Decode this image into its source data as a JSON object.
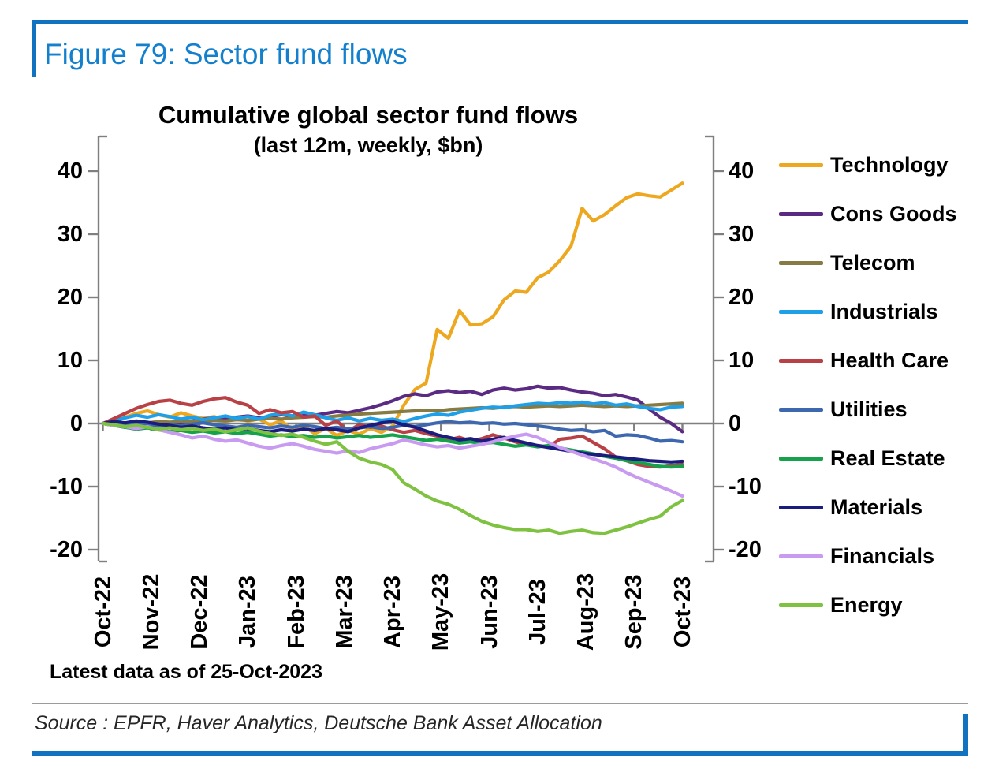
{
  "figure": {
    "title": "Figure 79: Sector fund flows",
    "note": "Latest data as of 25-Oct-2023",
    "source": "Source : EPFR, Haver Analytics, Deutsche Bank Asset Allocation",
    "accent_color": "#1173BF",
    "title_color": "#1380CE"
  },
  "chart_data": {
    "type": "line",
    "title": "Cumulative global sector fund flows",
    "subtitle": "(last 12m, weekly, $bn)",
    "sampling": "weekly",
    "points_per_series": 53,
    "x_tick_labels": [
      "Oct-22",
      "Nov-22",
      "Dec-22",
      "Jan-23",
      "Feb-23",
      "Mar-23",
      "Apr-23",
      "May-23",
      "Jun-23",
      "Jul-23",
      "Aug-23",
      "Sep-23",
      "Oct-23"
    ],
    "y_ticks": [
      40,
      30,
      20,
      10,
      0,
      -10,
      -20
    ],
    "ylim": [
      -22,
      46
    ],
    "grid": false,
    "legend_position": "right",
    "axis_color": "#7f7f7f",
    "series": [
      {
        "name": "Technology",
        "color": "#EDA820",
        "values": [
          0,
          0.5,
          1.0,
          1.6,
          2.0,
          1.4,
          1.0,
          1.7,
          1.2,
          0.8,
          1.1,
          0.5,
          0.9,
          0.4,
          0.7,
          -0.2,
          0.4,
          -1.0,
          -0.4,
          -1.6,
          -0.8,
          -1.9,
          -1.1,
          -1.7,
          -0.8,
          -1.4,
          -0.4,
          2.9,
          5.4,
          6.4,
          14.9,
          13.5,
          17.9,
          15.6,
          15.8,
          16.9,
          19.6,
          21.0,
          20.8,
          23.1,
          24.0,
          25.8,
          28.1,
          34.1,
          32.1,
          33.1,
          34.5,
          35.8,
          36.4,
          36.1,
          35.9,
          37.0,
          38.1
        ]
      },
      {
        "name": "Cons Goods",
        "color": "#5B2B84",
        "values": [
          0,
          -0.3,
          -0.6,
          -0.4,
          -0.7,
          -0.5,
          -0.2,
          0.1,
          0.4,
          0.7,
          0.9,
          0.7,
          1.0,
          1.2,
          0.9,
          1.1,
          1.4,
          1.2,
          1.5,
          1.3,
          1.6,
          1.9,
          1.7,
          2.1,
          2.5,
          3.0,
          3.6,
          4.3,
          4.7,
          4.4,
          5.0,
          5.2,
          4.9,
          5.1,
          4.6,
          5.3,
          5.6,
          5.3,
          5.5,
          5.9,
          5.6,
          5.7,
          5.3,
          5.0,
          4.8,
          4.4,
          4.6,
          4.2,
          3.7,
          2.3,
          1.0,
          0.0,
          -1.3
        ]
      },
      {
        "name": "Telecom",
        "color": "#867B42",
        "values": [
          0,
          0.1,
          0.0,
          0.2,
          0.1,
          0.3,
          0.2,
          0.3,
          0.4,
          0.3,
          0.5,
          0.4,
          0.6,
          0.5,
          0.7,
          0.8,
          0.7,
          0.9,
          1.0,
          1.1,
          1.0,
          1.2,
          1.3,
          1.5,
          1.6,
          1.7,
          1.8,
          1.9,
          2.0,
          2.1,
          2.0,
          2.2,
          2.3,
          2.4,
          2.5,
          2.4,
          2.6,
          2.7,
          2.6,
          2.7,
          2.8,
          2.7,
          2.8,
          2.9,
          2.8,
          2.7,
          2.8,
          2.7,
          2.8,
          2.9,
          3.0,
          3.1,
          3.2
        ]
      },
      {
        "name": "Industrials",
        "color": "#1F9FE8",
        "values": [
          0,
          0.4,
          0.9,
          1.3,
          1.0,
          1.4,
          1.1,
          0.7,
          1.0,
          0.6,
          0.9,
          1.2,
          0.8,
          1.1,
          0.7,
          1.3,
          1.6,
          1.2,
          1.8,
          1.4,
          0.9,
          0.5,
          0.9,
          0.4,
          0.8,
          0.5,
          0.7,
          0.3,
          0.8,
          1.2,
          1.5,
          1.3,
          1.8,
          2.1,
          2.4,
          2.6,
          2.5,
          2.8,
          3.0,
          3.2,
          3.1,
          3.3,
          3.2,
          3.4,
          3.1,
          3.3,
          2.9,
          3.1,
          2.7,
          2.4,
          2.2,
          2.6,
          2.7
        ]
      },
      {
        "name": "Health Care",
        "color": "#B94045",
        "values": [
          0,
          0.8,
          1.6,
          2.4,
          3.0,
          3.5,
          3.7,
          3.2,
          2.9,
          3.5,
          3.9,
          4.1,
          3.4,
          2.9,
          1.6,
          2.2,
          1.7,
          1.9,
          1.0,
          1.2,
          -0.3,
          0.4,
          -1.2,
          -0.2,
          -0.6,
          -0.4,
          -1.0,
          -1.4,
          -1.1,
          -1.6,
          -2.0,
          -2.6,
          -2.2,
          -2.8,
          -2.4,
          -1.8,
          -2.3,
          -2.9,
          -3.4,
          -3.5,
          -3.7,
          -2.5,
          -2.3,
          -2.0,
          -3.0,
          -4.0,
          -5.3,
          -5.9,
          -6.5,
          -6.8,
          -6.9,
          -6.7,
          -6.5
        ]
      },
      {
        "name": "Utilities",
        "color": "#3D68AF",
        "values": [
          0,
          -0.2,
          -0.4,
          -0.1,
          -0.3,
          -0.5,
          -0.2,
          -0.4,
          -0.1,
          0.1,
          -0.2,
          -0.4,
          -0.6,
          -0.3,
          -0.5,
          -0.7,
          -0.4,
          -0.6,
          -0.3,
          -0.5,
          -0.8,
          -0.6,
          -0.9,
          -0.7,
          -0.5,
          -0.8,
          -0.6,
          -0.3,
          -0.5,
          -0.2,
          0.1,
          0.3,
          0.1,
          0.2,
          0.0,
          0.1,
          -0.1,
          0.0,
          -0.2,
          -0.4,
          -0.6,
          -0.9,
          -1.1,
          -1.0,
          -1.3,
          -1.1,
          -2.0,
          -1.8,
          -1.9,
          -2.3,
          -2.8,
          -2.7,
          -2.9
        ]
      },
      {
        "name": "Real Estate",
        "color": "#16A24A",
        "values": [
          0,
          -0.3,
          -0.6,
          -0.9,
          -0.7,
          -1.0,
          -1.3,
          -1.1,
          -1.4,
          -1.2,
          -1.5,
          -1.3,
          -1.6,
          -1.4,
          -1.7,
          -2.0,
          -1.8,
          -2.1,
          -1.9,
          -2.2,
          -2.0,
          -2.3,
          -2.1,
          -1.9,
          -2.2,
          -2.0,
          -1.8,
          -2.1,
          -2.4,
          -2.7,
          -2.5,
          -2.8,
          -3.1,
          -2.9,
          -3.2,
          -3.0,
          -3.3,
          -3.6,
          -3.4,
          -3.7,
          -3.5,
          -3.9,
          -4.2,
          -4.5,
          -4.8,
          -5.2,
          -5.5,
          -5.9,
          -6.2,
          -6.5,
          -6.8,
          -6.9,
          -6.8
        ]
      },
      {
        "name": "Materials",
        "color": "#1A1D7E",
        "values": [
          0,
          0.3,
          0.1,
          0.4,
          0.2,
          -0.1,
          -0.3,
          -0.6,
          -0.4,
          -0.7,
          -0.9,
          -0.7,
          -1.0,
          -0.8,
          -1.1,
          -1.3,
          -1.0,
          -1.2,
          -0.9,
          -1.1,
          -0.8,
          -1.0,
          -1.3,
          -0.7,
          -0.3,
          0.1,
          0.3,
          -0.2,
          -0.6,
          -1.2,
          -1.8,
          -2.2,
          -2.6,
          -2.4,
          -2.8,
          -2.5,
          -2.2,
          -2.7,
          -3.1,
          -3.5,
          -3.8,
          -4.1,
          -4.4,
          -4.7,
          -4.9,
          -5.1,
          -5.3,
          -5.5,
          -5.7,
          -5.9,
          -6.0,
          -6.1,
          -6.0
        ]
      },
      {
        "name": "Financials",
        "color": "#C89BF0",
        "values": [
          0,
          -0.3,
          -0.5,
          -0.8,
          -0.5,
          -1.0,
          -1.4,
          -1.8,
          -2.3,
          -2.0,
          -2.5,
          -2.8,
          -2.6,
          -3.1,
          -3.6,
          -3.9,
          -3.5,
          -3.2,
          -3.6,
          -4.1,
          -4.4,
          -4.7,
          -4.3,
          -4.6,
          -4.0,
          -3.6,
          -3.2,
          -2.6,
          -3.0,
          -3.4,
          -3.7,
          -3.5,
          -3.9,
          -3.6,
          -3.3,
          -2.9,
          -2.4,
          -2.0,
          -1.7,
          -2.2,
          -3.0,
          -3.8,
          -4.4,
          -5.0,
          -5.6,
          -6.2,
          -6.9,
          -7.8,
          -8.6,
          -9.3,
          -10.0,
          -10.7,
          -11.5
        ]
      },
      {
        "name": "Energy",
        "color": "#7FC241",
        "values": [
          0,
          -0.2,
          -0.5,
          -0.3,
          -0.6,
          -0.9,
          -0.7,
          -1.0,
          -0.8,
          -1.1,
          -0.9,
          -1.3,
          -1.0,
          -0.7,
          -1.2,
          -1.6,
          -1.9,
          -1.7,
          -2.2,
          -2.8,
          -3.3,
          -2.9,
          -4.4,
          -5.5,
          -6.1,
          -6.5,
          -7.3,
          -9.4,
          -10.4,
          -11.5,
          -12.3,
          -12.8,
          -13.6,
          -14.6,
          -15.5,
          -16.1,
          -16.5,
          -16.8,
          -16.8,
          -17.1,
          -16.9,
          -17.4,
          -17.1,
          -16.9,
          -17.3,
          -17.4,
          -16.9,
          -16.4,
          -15.8,
          -15.2,
          -14.7,
          -13.2,
          -12.2
        ]
      }
    ]
  }
}
